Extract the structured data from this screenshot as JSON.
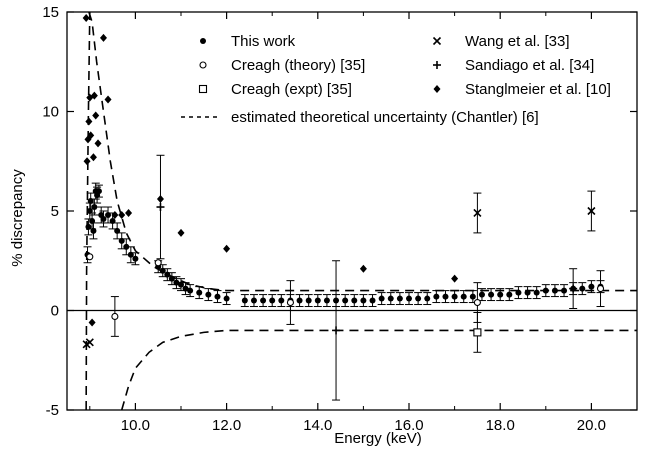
{
  "chart_data": {
    "type": "scatter",
    "title": "",
    "xlabel": "Energy (keV)",
    "ylabel": "% discrepancy",
    "xlim": [
      8.5,
      21.0
    ],
    "ylim": [
      -5,
      15
    ],
    "x_ticks": [
      10.0,
      12.0,
      14.0,
      16.0,
      18.0,
      20.0
    ],
    "x_tick_labels": [
      "10.0",
      "12.0",
      "14.0",
      "16.0",
      "18.0",
      "20.0"
    ],
    "y_ticks": [
      -5,
      0,
      5,
      10,
      15
    ],
    "y_tick_labels": [
      "-5",
      "0",
      "5",
      "10",
      "15"
    ],
    "grid": false,
    "legend_position": "top",
    "legend": [
      {
        "label": "This work",
        "marker": "filled-circle"
      },
      {
        "label": "Creagh (theory) [35]",
        "marker": "open-circle"
      },
      {
        "label": "Creagh (expt) [35]",
        "marker": "open-square"
      },
      {
        "label": "Wang et al. [33]",
        "marker": "cross"
      },
      {
        "label": "Sandiago et al. [34]",
        "marker": "plus"
      },
      {
        "label": "Stanglmeier et al. [10]",
        "marker": "filled-diamond"
      },
      {
        "label": "estimated theoretical uncertainty (Chantler) [6]",
        "marker": "dashed-line"
      }
    ],
    "series": [
      {
        "name": "This work",
        "marker": "filled-circle",
        "x": [
          8.95,
          8.97,
          9.0,
          9.02,
          9.05,
          9.08,
          9.1,
          9.13,
          9.16,
          9.2,
          9.25,
          9.3,
          9.4,
          9.5,
          9.6,
          9.7,
          9.8,
          9.9,
          10.0,
          10.5,
          10.6,
          10.7,
          10.8,
          10.9,
          11.0,
          11.1,
          11.2,
          11.4,
          11.6,
          11.8,
          12.0,
          12.4,
          12.6,
          12.8,
          13.0,
          13.2,
          13.4,
          13.6,
          13.8,
          14.0,
          14.2,
          14.4,
          14.6,
          14.8,
          15.0,
          15.2,
          15.4,
          15.6,
          15.8,
          16.0,
          16.2,
          16.4,
          16.6,
          16.8,
          17.0,
          17.2,
          17.4,
          17.6,
          17.8,
          18.0,
          18.2,
          18.4,
          18.6,
          18.8,
          19.0,
          19.2,
          19.4,
          19.6,
          19.8,
          20.0,
          20.2
        ],
        "y": [
          2.8,
          4.2,
          5.0,
          5.5,
          4.5,
          4.0,
          5.2,
          6.0,
          5.8,
          6.0,
          4.8,
          4.6,
          4.8,
          4.5,
          4.0,
          3.5,
          3.2,
          2.8,
          2.6,
          2.2,
          2.0,
          1.8,
          1.6,
          1.4,
          1.3,
          1.1,
          1.0,
          0.9,
          0.8,
          0.7,
          0.6,
          0.5,
          0.5,
          0.5,
          0.5,
          0.5,
          0.5,
          0.5,
          0.5,
          0.5,
          0.5,
          0.5,
          0.5,
          0.5,
          0.5,
          0.5,
          0.6,
          0.6,
          0.6,
          0.6,
          0.6,
          0.6,
          0.7,
          0.7,
          0.7,
          0.7,
          0.7,
          0.8,
          0.8,
          0.8,
          0.8,
          0.9,
          0.9,
          0.9,
          1.0,
          1.0,
          1.0,
          1.1,
          1.1,
          1.2,
          1.2
        ],
        "yerr": [
          0.4,
          0.4,
          0.4,
          0.4,
          0.4,
          0.4,
          0.4,
          0.4,
          0.4,
          0.3,
          0.4,
          0.4,
          0.4,
          0.4,
          0.4,
          0.4,
          0.4,
          0.4,
          0.3,
          0.3,
          0.3,
          0.3,
          0.3,
          0.3,
          0.3,
          0.3,
          0.3,
          0.3,
          0.3,
          0.3,
          0.3,
          0.3,
          0.3,
          0.3,
          0.3,
          0.3,
          0.3,
          0.3,
          0.3,
          0.3,
          0.3,
          0.3,
          0.3,
          0.3,
          0.3,
          0.3,
          0.3,
          0.3,
          0.3,
          0.3,
          0.3,
          0.3,
          0.3,
          0.3,
          0.3,
          0.3,
          0.3,
          0.3,
          0.3,
          0.3,
          0.3,
          0.3,
          0.3,
          0.3,
          0.3,
          0.3,
          0.3,
          0.3,
          0.3,
          0.3,
          0.3
        ]
      },
      {
        "name": "Creagh (theory) [35]",
        "marker": "open-circle",
        "x": [
          9.0,
          9.55,
          10.5,
          13.4,
          17.5,
          20.2
        ],
        "y": [
          2.7,
          -0.3,
          2.4,
          0.4,
          0.4,
          1.1
        ],
        "yerr": [
          0,
          1.0,
          0,
          1.1,
          1.0,
          0.9
        ]
      },
      {
        "name": "Creagh (expt) [35]",
        "marker": "open-square",
        "x": [
          17.5
        ],
        "y": [
          -1.1
        ],
        "yerr": [
          1.0
        ]
      },
      {
        "name": "Wang et al. [33]",
        "marker": "cross",
        "x": [
          8.93,
          9.0,
          17.5,
          20.0
        ],
        "y": [
          -1.7,
          -1.6,
          4.9,
          5.0
        ],
        "yerr": [
          0,
          0,
          1.0,
          1.0
        ]
      },
      {
        "name": "Sandiago et al. [34]",
        "marker": "plus",
        "x": [
          10.55,
          14.4,
          19.6
        ],
        "y": [
          5.2,
          -1.0,
          1.1
        ],
        "yerr": [
          2.6,
          3.5,
          1.0
        ]
      },
      {
        "name": "Stanglmeier et al. [10]",
        "marker": "filled-diamond",
        "x": [
          8.92,
          8.94,
          8.96,
          8.98,
          9.0,
          9.02,
          9.05,
          9.08,
          9.1,
          9.13,
          9.18,
          9.3,
          9.4,
          9.55,
          9.7,
          9.85,
          10.55,
          11.0,
          12.0,
          15.0,
          17.0
        ],
        "y": [
          14.7,
          7.5,
          8.6,
          9.5,
          10.7,
          8.8,
          -0.6,
          7.7,
          10.8,
          9.8,
          8.4,
          13.7,
          10.6,
          4.8,
          4.8,
          4.9,
          5.6,
          3.9,
          3.1,
          2.1,
          1.6
        ]
      }
    ],
    "uncertainty_band": {
      "name": "estimated theoretical uncertainty (Chantler) [6]",
      "upper": {
        "x": [
          8.98,
          9.05,
          9.15,
          9.3,
          9.45,
          9.6,
          9.8,
          10.0,
          10.4,
          10.8,
          11.2,
          11.6,
          12.0,
          21.0
        ],
        "y": [
          15,
          14.5,
          12.5,
          10.0,
          7.5,
          5.5,
          3.9,
          3.0,
          2.2,
          1.7,
          1.3,
          1.1,
          1.0,
          1.0
        ]
      },
      "lower": {
        "x": [
          8.92,
          8.93,
          8.95,
          8.97,
          9.0
        ],
        "y": [
          -5,
          2,
          6,
          10,
          15
        ]
      },
      "lower_tail": {
        "x": [
          9.7,
          9.85,
          10.0,
          10.3,
          10.6,
          11.0,
          11.5,
          12.0,
          21.0
        ],
        "y": [
          -5,
          -3.8,
          -2.9,
          -2.1,
          -1.6,
          -1.3,
          -1.1,
          -1.0,
          -1.0
        ]
      }
    },
    "reference_line": {
      "y": 0
    }
  }
}
